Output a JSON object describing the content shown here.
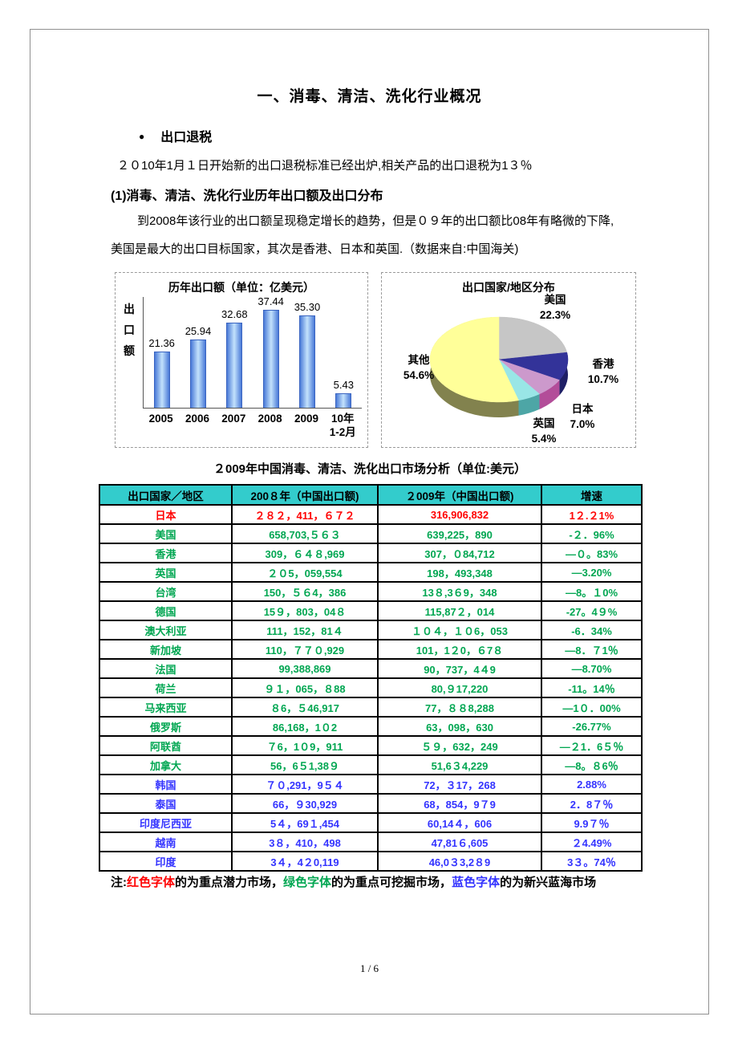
{
  "page": {
    "number": "1 / 6"
  },
  "doc": {
    "title": "一、消毒、清洁、洗化行业概况",
    "bullet": {
      "marker": "●",
      "label": "出口退税"
    },
    "para1": "２０10年1月１日开始新的出口退税标准已经出炉,相关产品的出口退税为1３％",
    "section1": "(1)消毒、清洁、洗化行业历年出口额及出口分布",
    "para2_line1": "到2008年该行业的出口额呈现稳定增长的趋势，但是０９年的出口额比08年有略微的下降,",
    "para2_line2": "美国是最大的出口目标国家，其次是香港、日本和英国.（数据来自:中国海关)"
  },
  "chart_data": [
    {
      "type": "bar",
      "title": "历年出口额（单位：亿美元）",
      "ylabel": "出口额",
      "xlabel": "",
      "categories": [
        "2005",
        "2006",
        "2007",
        "2008",
        "2009",
        "10年\n1-2月"
      ],
      "values": [
        21.36,
        25.94,
        32.68,
        37.44,
        35.3,
        5.43
      ],
      "ylim": [
        0,
        40
      ],
      "grid": false,
      "bar_color_edge": "#4a7ad8",
      "bar_color_center": "#c3e2fc"
    },
    {
      "type": "pie",
      "title": "出口国家/地区分布",
      "labels": [
        "美国",
        "香港",
        "日本",
        "英国",
        "其他"
      ],
      "values": [
        22.3,
        10.7,
        7.0,
        5.4,
        54.6
      ],
      "pct_labels": [
        "22.3%",
        "10.7%",
        "7.0%",
        "5.4%",
        "54.6%"
      ],
      "colors": [
        "#C6C6C6",
        "#333399",
        "#CC99CC",
        "#99E6E6",
        "#FFFF99"
      ],
      "side_colors": [
        "#8a8a8a",
        "#1f1f66",
        "#b34d99",
        "#4da6a6",
        "#82824e"
      ],
      "start_angle_deg": -90,
      "legend_position": "around-slices"
    }
  ],
  "table": {
    "title": "２009年中国消毒、清洁、洗化出口市场分析（单位:美元）",
    "headers": [
      "出口国家／地区",
      "200８年（中国出口额)",
      "２009年（中国出口额)",
      "增速"
    ],
    "header_bg": "#33CCCC",
    "tone_colors": {
      "red": "#FF0000",
      "green": "#00A651",
      "blue": "#3333FF"
    },
    "rows": [
      {
        "country": "日本",
        "y2008": "２８２，411，６７２",
        "y2009": "316,906,832",
        "growth": "1２.２1%",
        "tone": "red"
      },
      {
        "country": "美国",
        "y2008": "658,703,５６３",
        "y2009": "639,225，890",
        "growth": "-２．96%",
        "tone": "green"
      },
      {
        "country": "香港",
        "y2008": "309，６４８,969",
        "y2009": "307，０84,712",
        "growth": "—０。83%",
        "tone": "green"
      },
      {
        "country": "英国",
        "y2008": "２０5，059,554",
        "y2009": "198，493,348",
        "growth": "—3.20%",
        "tone": "green"
      },
      {
        "country": "台湾",
        "y2008": "150，５６4，386",
        "y2009": "13８,3６9，348",
        "growth": "—8。１0%",
        "tone": "green"
      },
      {
        "country": "德国",
        "y2008": "15９，803，04８",
        "y2009": "115,87２，014",
        "growth": "-27。4９%",
        "tone": "green"
      },
      {
        "country": "澳大利亚",
        "y2008": "111，152，81４",
        "y2009": "１０４，１０6，053",
        "growth": "-6．34%",
        "tone": "green"
      },
      {
        "country": "新加坡",
        "y2008": "110，７７０,929",
        "y2009": "101，1２0，６7８",
        "growth": "—8．７1％",
        "tone": "green"
      },
      {
        "country": "法国",
        "y2008": "99,388,869",
        "y2009": "90，737，4４9",
        "growth": "—8.70%",
        "tone": "green"
      },
      {
        "country": "荷兰",
        "y2008": "９１，065，８88",
        "y2009": "80,９17,220",
        "growth": "-11。14％",
        "tone": "green"
      },
      {
        "country": "马来西亚",
        "y2008": "８6，５46,917",
        "y2009": "77，８８8,288",
        "growth": "—1０．00%",
        "tone": "green"
      },
      {
        "country": "俄罗斯",
        "y2008": "86,168，1０2",
        "y2009": "63，098，630",
        "growth": "-26.77%",
        "tone": "green"
      },
      {
        "country": "阿联酋",
        "y2008": "７6，1０9，911",
        "y2009": "５９，632，249",
        "growth": "—２1．6５％",
        "tone": "green"
      },
      {
        "country": "加拿大",
        "y2008": "56，6５1,38９",
        "y2009": "51,6３4,229",
        "growth": "—8。８6％",
        "tone": "green"
      },
      {
        "country": "韩国",
        "y2008": "７０,291，9５４",
        "y2009": "72，３17，268",
        "growth": "2.88%",
        "tone": "blue"
      },
      {
        "country": "泰国",
        "y2008": "66，９30,929",
        "y2009": "68，854，9７9",
        "growth": "2．8７％",
        "tone": "blue"
      },
      {
        "country": "印度尼西亚",
        "y2008": "5４，69１,454",
        "y2009": "60,14４，606",
        "growth": "9.9７％",
        "tone": "blue"
      },
      {
        "country": "越南",
        "y2008": "3８，410，498",
        "y2009": "47,81６,605",
        "growth": "２4.49%",
        "tone": "blue"
      },
      {
        "country": "印度",
        "y2008": "3４，4２0,119",
        "y2009": "46,0３3,2８9",
        "growth": "3３。74％",
        "tone": "blue"
      }
    ]
  },
  "footnote": {
    "segments": [
      {
        "text": "注:",
        "color": "#000000"
      },
      {
        "text": "红色字体",
        "color": "#FF0000"
      },
      {
        "text": "的为重点潜力市场，",
        "color": "#000000"
      },
      {
        "text": "绿色字体",
        "color": "#00A651"
      },
      {
        "text": "的为重点可挖掘市场，",
        "color": "#000000"
      },
      {
        "text": "蓝色字体",
        "color": "#3333FF"
      },
      {
        "text": "的为新兴蓝海市场",
        "color": "#000000"
      }
    ]
  }
}
